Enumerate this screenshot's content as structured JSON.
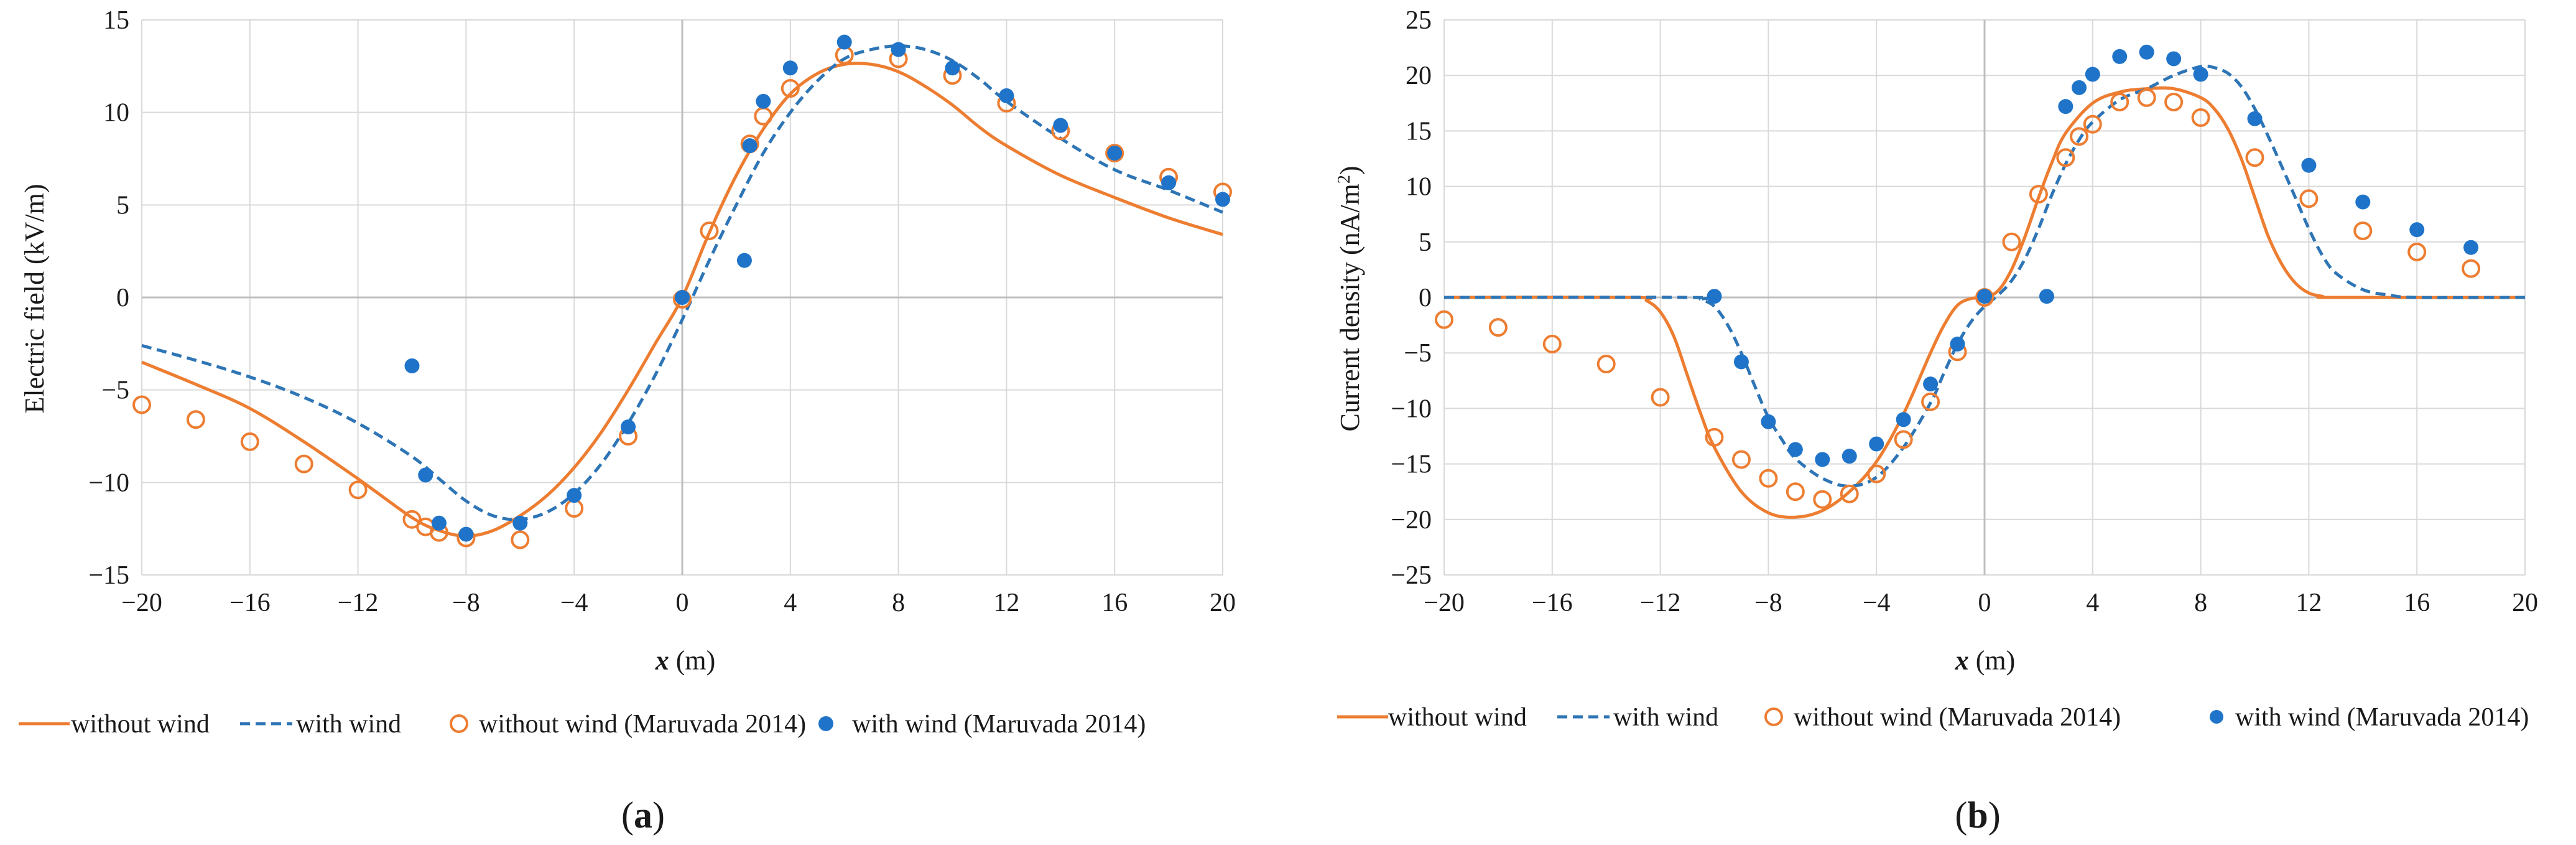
{
  "figure": {
    "panels": [
      "(a)",
      "(b)"
    ]
  },
  "colors": {
    "orange": "#ED7D31",
    "blue": "#2E75B6",
    "blue_dots": "#1F74C9",
    "grid": "#D9D9D9",
    "zero_axis": "#BFBFBF",
    "text": "#1A1A1A"
  },
  "legend_labels": {
    "without_wind": "without wind",
    "with_wind": "with wind",
    "without_wind_ref": "without wind (Maruvada 2014)",
    "with_wind_ref": "with wind (Maruvada 2014)"
  },
  "chart_data": [
    {
      "type": "line",
      "panel_label": "(a)",
      "xlabel_var": "x",
      "xlabel_unit": " (m)",
      "ylabel": "Electric field (kV/m)",
      "xlim": [
        -20,
        20
      ],
      "ylim": [
        -15,
        15
      ],
      "xticks": [
        -20,
        -16,
        -12,
        -8,
        -4,
        0,
        4,
        8,
        12,
        16,
        20
      ],
      "yticks": [
        -15,
        -10,
        -5,
        0,
        5,
        10,
        15
      ],
      "tick_labels_x": [
        "−20",
        "−16",
        "−12",
        "−8",
        "−4",
        "0",
        "4",
        "8",
        "12",
        "16",
        "20"
      ],
      "tick_labels_y": [
        "−15",
        "−10",
        "−5",
        "0",
        "5",
        "10",
        "15"
      ],
      "series": [
        {
          "name": "without wind",
          "style": "solid",
          "color": "#ED7D31",
          "x": [
            -20,
            -18,
            -16,
            -14,
            -12,
            -10,
            -9,
            -8,
            -7,
            -6,
            -5,
            -4,
            -3,
            -2,
            -1,
            0,
            1,
            2,
            3,
            4,
            5,
            6,
            7,
            8,
            9,
            10,
            11,
            12,
            14,
            16,
            18,
            20
          ],
          "y": [
            -3.5,
            -4.7,
            -6.0,
            -7.8,
            -9.8,
            -11.9,
            -12.6,
            -12.9,
            -12.6,
            -11.8,
            -10.7,
            -9.2,
            -7.3,
            -5.0,
            -2.5,
            0,
            3.5,
            6.6,
            9.1,
            11.0,
            12.1,
            12.6,
            12.6,
            12.2,
            11.4,
            10.4,
            9.2,
            8.2,
            6.6,
            5.4,
            4.3,
            3.4
          ]
        },
        {
          "name": "with wind",
          "style": "dashed",
          "color": "#2E75B6",
          "x": [
            -20,
            -18,
            -16,
            -14,
            -12,
            -10,
            -9,
            -8,
            -7,
            -6,
            -5,
            -4,
            -3,
            -2,
            -1,
            0,
            1,
            2,
            3,
            4,
            5,
            6,
            7,
            8,
            9,
            10,
            11,
            12,
            14,
            16,
            18,
            20
          ],
          "y": [
            -2.6,
            -3.4,
            -4.3,
            -5.4,
            -6.8,
            -8.6,
            -9.8,
            -11.0,
            -11.8,
            -12.0,
            -11.6,
            -10.6,
            -9.0,
            -6.8,
            -4.2,
            -1.2,
            2.0,
            5.0,
            7.8,
            10.0,
            11.7,
            12.9,
            13.4,
            13.6,
            13.4,
            12.8,
            11.8,
            10.6,
            8.6,
            6.9,
            5.8,
            4.6
          ]
        },
        {
          "name": "without wind (Maruvada 2014)",
          "style": "open-circle",
          "color": "#ED7D31",
          "x": [
            -20,
            -18,
            -16,
            -14,
            -12,
            -10,
            -9.5,
            -9,
            -8,
            -6,
            -4,
            -2,
            0,
            1,
            2.5,
            3,
            4,
            6,
            8,
            10,
            12,
            14,
            16,
            18,
            20
          ],
          "y": [
            -5.8,
            -6.6,
            -7.8,
            -9.0,
            -10.4,
            -12.0,
            -12.4,
            -12.7,
            -13.0,
            -13.1,
            -11.4,
            -7.5,
            -0.1,
            3.6,
            8.3,
            9.8,
            11.3,
            13.1,
            12.9,
            12.0,
            10.5,
            9.0,
            7.8,
            6.5,
            5.7
          ]
        },
        {
          "name": "with wind (Maruvada 2014)",
          "style": "filled-circle",
          "color": "#1F74C9",
          "x": [
            -10,
            -9.5,
            -9,
            -8,
            -6,
            -4,
            -2,
            0,
            2.3,
            2.5,
            3,
            4,
            6,
            8,
            10,
            12,
            14,
            16,
            18,
            20
          ],
          "y": [
            -3.7,
            -9.6,
            -12.2,
            -12.8,
            -12.2,
            -10.7,
            -7.0,
            0.0,
            2.0,
            8.2,
            10.6,
            12.4,
            13.8,
            13.4,
            12.4,
            10.9,
            9.3,
            7.8,
            6.2,
            5.3
          ]
        }
      ]
    },
    {
      "type": "line",
      "panel_label": "(b)",
      "xlabel_var": "x",
      "xlabel_unit": " (m)",
      "ylabel": "Current density (nA/m",
      "ylabel_sup": "2",
      "ylabel_end": ")",
      "xlim": [
        -20,
        20
      ],
      "ylim": [
        -25,
        25
      ],
      "xticks": [
        -20,
        -16,
        -12,
        -8,
        -4,
        0,
        4,
        8,
        12,
        16,
        20
      ],
      "yticks": [
        -25,
        -20,
        -15,
        -10,
        -5,
        0,
        5,
        10,
        15,
        20,
        25
      ],
      "tick_labels_x": [
        "−20",
        "−16",
        "−12",
        "−8",
        "−4",
        "0",
        "4",
        "8",
        "12",
        "16",
        "20"
      ],
      "tick_labels_y": [
        "−25",
        "−20",
        "−15",
        "−10",
        "−5",
        "0",
        "5",
        "10",
        "15",
        "20",
        "25"
      ],
      "series": [
        {
          "name": "without wind",
          "style": "solid",
          "color": "#ED7D31",
          "x": [
            -20,
            -13,
            -12.5,
            -12,
            -11.5,
            -11,
            -10.5,
            -10,
            -9,
            -8,
            -7,
            -6,
            -5,
            -4,
            -3,
            -2,
            -1.5,
            -1,
            -0.5,
            0,
            0.5,
            1,
            1.5,
            2,
            2.5,
            3,
            4,
            5,
            6,
            7,
            8,
            8.5,
            9,
            9.5,
            10,
            10.5,
            11,
            11.5,
            12,
            12.5,
            13,
            20
          ],
          "y": [
            0,
            0,
            -0.3,
            -1.3,
            -3.5,
            -7.0,
            -10.5,
            -13.5,
            -17.5,
            -19.4,
            -19.8,
            -19.2,
            -17.5,
            -14.8,
            -10.5,
            -5.0,
            -2.5,
            -0.7,
            -0.1,
            0,
            0.6,
            2.5,
            5.5,
            9.0,
            12.2,
            14.8,
            17.5,
            18.5,
            18.8,
            18.8,
            18.0,
            17.0,
            15.2,
            12.5,
            9.0,
            5.5,
            3.0,
            1.3,
            0.4,
            0.1,
            0,
            0
          ]
        },
        {
          "name": "with wind",
          "style": "dashed",
          "color": "#2E75B6",
          "x": [
            -20,
            -11,
            -10.5,
            -10,
            -9.5,
            -9,
            -8.5,
            -8,
            -7.5,
            -7,
            -6,
            -5,
            -4,
            -3,
            -2,
            -1.5,
            -1,
            -0.5,
            0,
            0.5,
            1,
            1.5,
            2,
            2.5,
            3,
            3.5,
            4,
            5,
            6,
            7,
            8,
            8.5,
            9,
            9.5,
            10,
            10.5,
            11,
            11.5,
            12,
            12.5,
            13,
            14,
            15,
            16,
            20
          ],
          "y": [
            0,
            0,
            -0.2,
            -0.8,
            -2.5,
            -5.0,
            -8.0,
            -10.8,
            -12.8,
            -14.5,
            -16.3,
            -17.0,
            -16.2,
            -13.5,
            -9.5,
            -6.8,
            -4.2,
            -2.2,
            -0.8,
            0.2,
            1.5,
            3.5,
            6.2,
            9.3,
            12.0,
            14.2,
            15.8,
            17.8,
            18.8,
            20.0,
            20.8,
            20.7,
            20.2,
            19.0,
            17.0,
            14.5,
            11.8,
            9.0,
            6.2,
            3.8,
            2.2,
            0.7,
            0.2,
            0,
            0
          ]
        },
        {
          "name": "without wind (Maruvada 2014)",
          "style": "open-circle",
          "color": "#ED7D31",
          "x": [
            -20,
            -18,
            -16,
            -14,
            -12,
            -10,
            -9,
            -8,
            -7,
            -6,
            -5,
            -4,
            -3,
            -2,
            -1,
            0,
            1,
            2,
            3,
            3.5,
            4,
            5,
            6,
            7,
            8,
            10,
            12,
            14,
            16,
            18
          ],
          "y": [
            -2.0,
            -2.7,
            -4.2,
            -6.0,
            -9.0,
            -12.6,
            -14.6,
            -16.3,
            -17.5,
            -18.2,
            -17.7,
            -15.9,
            -12.8,
            -9.4,
            -4.9,
            0.0,
            5.0,
            9.3,
            12.6,
            14.5,
            15.6,
            17.6,
            18.0,
            17.6,
            16.2,
            12.6,
            8.9,
            6.0,
            4.1,
            2.6
          ]
        },
        {
          "name": "with wind (Maruvada 2014)",
          "style": "filled-circle",
          "color": "#1F74C9",
          "x": [
            -10,
            -9,
            -8,
            -7,
            -6,
            -5,
            -4,
            -3,
            -2,
            -1,
            0,
            2.3,
            3,
            3.5,
            4,
            5,
            6,
            7,
            8,
            10,
            12,
            14,
            16,
            18
          ],
          "y": [
            0.1,
            -5.8,
            -11.2,
            -13.7,
            -14.6,
            -14.3,
            -13.2,
            -11.0,
            -7.8,
            -4.2,
            0.1,
            0.1,
            17.2,
            18.9,
            20.1,
            21.7,
            22.1,
            21.5,
            20.1,
            16.1,
            11.9,
            8.6,
            6.1,
            4.5
          ]
        }
      ]
    }
  ]
}
